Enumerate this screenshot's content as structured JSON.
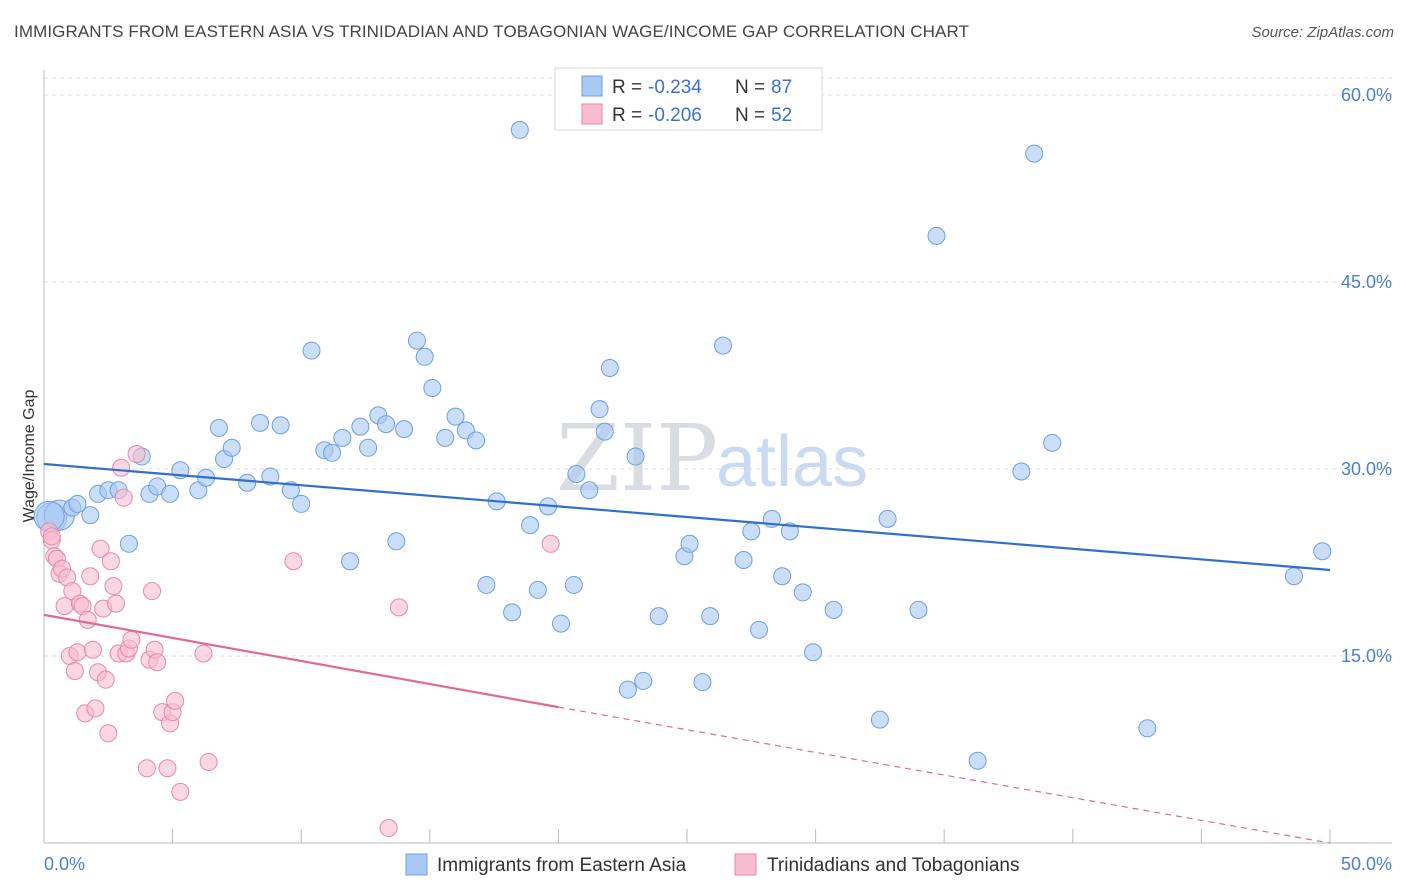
{
  "title": "IMMIGRANTS FROM EASTERN ASIA VS TRINIDADIAN AND TOBAGONIAN WAGE/INCOME GAP CORRELATION CHART",
  "source": "Source: ZipAtlas.com",
  "watermark": {
    "zip": "ZIP",
    "atlas": "atlas"
  },
  "legend": {
    "rows": [
      {
        "r_label": "R =",
        "r_value": "-0.234",
        "n_label": "N =",
        "n_value": "87",
        "color": "#a9c8f3"
      },
      {
        "r_label": "R =",
        "r_value": "-0.206",
        "n_label": "N =",
        "n_value": "52",
        "color": "#f7bcd0"
      }
    ]
  },
  "bottom_legend": [
    "Immigrants from Eastern Asia",
    "Trinidadians and Tobagonians"
  ],
  "chart_data": {
    "type": "scatter",
    "title": "IMMIGRANTS FROM EASTERN ASIA VS TRINIDADIAN AND TOBAGONIAN WAGE/INCOME GAP CORRELATION CHART",
    "xlabel": "",
    "ylabel": "Wage/Income Gap",
    "xlim": [
      0,
      50
    ],
    "ylim": [
      0,
      60
    ],
    "x_tick_labels": [
      "0.0%",
      "50.0%"
    ],
    "y_ticks": [
      15,
      30,
      45,
      60
    ],
    "y_tick_labels": [
      "15.0%",
      "30.0%",
      "45.0%",
      "60.0%"
    ],
    "grid": true,
    "legend_position": "top-center",
    "series": [
      {
        "name": "Immigrants from Eastern Asia",
        "color": "#a9c8f3",
        "stroke": "#6f9fe0",
        "trend": {
          "x": [
            0,
            50
          ],
          "y": [
            30.4,
            21.9
          ],
          "color": "#2f6fce"
        },
        "points": [
          [
            0.3,
            26.1
          ],
          [
            0.6,
            26.3
          ],
          [
            1.1,
            26.9
          ],
          [
            1.3,
            27.2
          ],
          [
            1.8,
            26.3
          ],
          [
            2.1,
            28.0
          ],
          [
            2.5,
            28.3
          ],
          [
            2.9,
            28.3
          ],
          [
            3.3,
            24.0
          ],
          [
            3.8,
            31.0
          ],
          [
            4.1,
            28.0
          ],
          [
            4.4,
            28.6
          ],
          [
            4.9,
            28.0
          ],
          [
            5.3,
            29.9
          ],
          [
            6.0,
            28.3
          ],
          [
            6.3,
            29.3
          ],
          [
            6.8,
            33.3
          ],
          [
            7.0,
            30.8
          ],
          [
            7.3,
            31.7
          ],
          [
            7.9,
            28.9
          ],
          [
            8.4,
            33.7
          ],
          [
            8.8,
            29.4
          ],
          [
            9.2,
            33.5
          ],
          [
            9.6,
            28.3
          ],
          [
            10.0,
            27.2
          ],
          [
            10.4,
            39.5
          ],
          [
            10.9,
            31.5
          ],
          [
            11.2,
            31.3
          ],
          [
            11.6,
            32.5
          ],
          [
            11.9,
            22.6
          ],
          [
            12.3,
            33.4
          ],
          [
            12.6,
            31.7
          ],
          [
            13.0,
            34.3
          ],
          [
            13.3,
            33.6
          ],
          [
            13.7,
            24.2
          ],
          [
            14.0,
            33.2
          ],
          [
            14.5,
            40.3
          ],
          [
            14.8,
            39.0
          ],
          [
            15.1,
            36.5
          ],
          [
            15.6,
            32.5
          ],
          [
            16.0,
            34.2
          ],
          [
            16.4,
            33.1
          ],
          [
            16.8,
            32.3
          ],
          [
            17.2,
            20.7
          ],
          [
            17.6,
            27.4
          ],
          [
            18.2,
            18.5
          ],
          [
            18.5,
            57.2
          ],
          [
            18.9,
            25.5
          ],
          [
            19.2,
            20.3
          ],
          [
            19.6,
            27.0
          ],
          [
            20.1,
            17.6
          ],
          [
            20.6,
            20.7
          ],
          [
            20.7,
            29.6
          ],
          [
            21.2,
            28.3
          ],
          [
            21.6,
            34.8
          ],
          [
            21.8,
            33.0
          ],
          [
            22.0,
            38.1
          ],
          [
            22.7,
            12.3
          ],
          [
            23.0,
            31.0
          ],
          [
            23.3,
            13.0
          ],
          [
            23.9,
            18.2
          ],
          [
            24.9,
            23.0
          ],
          [
            25.1,
            24.0
          ],
          [
            25.6,
            12.9
          ],
          [
            25.9,
            18.2
          ],
          [
            26.4,
            39.9
          ],
          [
            27.2,
            22.7
          ],
          [
            27.5,
            25.0
          ],
          [
            27.8,
            17.1
          ],
          [
            28.3,
            26.0
          ],
          [
            28.7,
            21.4
          ],
          [
            29.0,
            25.0
          ],
          [
            29.5,
            20.1
          ],
          [
            29.9,
            15.3
          ],
          [
            30.7,
            18.7
          ],
          [
            32.5,
            9.9
          ],
          [
            32.8,
            26.0
          ],
          [
            34.0,
            18.7
          ],
          [
            34.7,
            48.7
          ],
          [
            36.3,
            6.6
          ],
          [
            38.0,
            29.8
          ],
          [
            38.5,
            55.3
          ],
          [
            39.2,
            32.1
          ],
          [
            42.9,
            9.2
          ],
          [
            48.6,
            21.4
          ],
          [
            49.7,
            23.4
          ],
          [
            0.2,
            26.2
          ]
        ]
      },
      {
        "name": "Trinidadians and Tobagonians",
        "color": "#f7bcd0",
        "stroke": "#e888a8",
        "trend": {
          "x": [
            0,
            20
          ],
          "y": [
            18.3,
            10.9
          ],
          "color": "#e06a96",
          "dashed_to": [
            50,
            0
          ]
        },
        "points": [
          [
            0.2,
            25.0
          ],
          [
            0.3,
            24.3
          ],
          [
            0.4,
            23.0
          ],
          [
            0.5,
            22.8
          ],
          [
            0.6,
            21.6
          ],
          [
            0.7,
            22.0
          ],
          [
            0.8,
            19.0
          ],
          [
            0.9,
            21.3
          ],
          [
            1.0,
            15.0
          ],
          [
            1.1,
            20.2
          ],
          [
            1.2,
            13.8
          ],
          [
            1.3,
            15.3
          ],
          [
            1.4,
            19.2
          ],
          [
            1.5,
            19.0
          ],
          [
            1.6,
            10.4
          ],
          [
            1.7,
            17.9
          ],
          [
            1.8,
            21.4
          ],
          [
            1.9,
            15.5
          ],
          [
            2.0,
            10.8
          ],
          [
            2.1,
            13.7
          ],
          [
            2.2,
            23.6
          ],
          [
            2.3,
            18.8
          ],
          [
            2.4,
            13.1
          ],
          [
            2.5,
            8.8
          ],
          [
            2.6,
            22.6
          ],
          [
            2.7,
            20.6
          ],
          [
            2.8,
            19.2
          ],
          [
            2.9,
            15.2
          ],
          [
            3.0,
            30.1
          ],
          [
            3.1,
            27.7
          ],
          [
            3.2,
            15.2
          ],
          [
            3.3,
            15.6
          ],
          [
            3.4,
            16.3
          ],
          [
            3.6,
            31.2
          ],
          [
            4.0,
            6.0
          ],
          [
            4.1,
            14.7
          ],
          [
            4.2,
            20.2
          ],
          [
            4.3,
            15.5
          ],
          [
            4.4,
            14.5
          ],
          [
            4.6,
            10.5
          ],
          [
            4.8,
            6.0
          ],
          [
            4.9,
            9.6
          ],
          [
            5.0,
            10.5
          ],
          [
            5.1,
            11.4
          ],
          [
            5.3,
            4.1
          ],
          [
            6.2,
            15.2
          ],
          [
            6.4,
            6.5
          ],
          [
            9.7,
            22.6
          ],
          [
            13.4,
            1.2
          ],
          [
            13.8,
            18.9
          ],
          [
            19.7,
            24.0
          ],
          [
            0.3,
            24.6
          ]
        ]
      }
    ]
  }
}
